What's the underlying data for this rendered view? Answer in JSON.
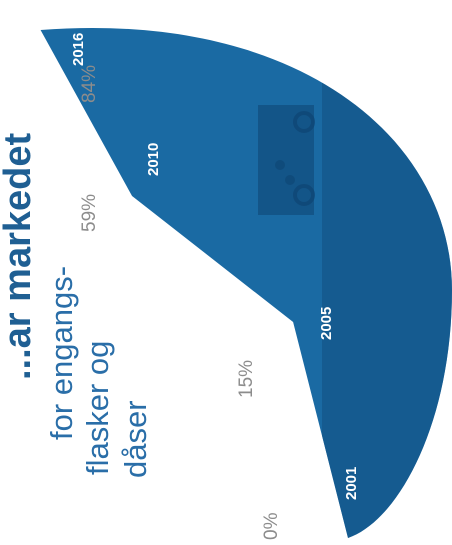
{
  "chart_data": {
    "type": "area",
    "title": "...ar markedet",
    "subtitle_lines": [
      "for engangs-",
      "flasker og",
      "dåser"
    ],
    "categories": [
      "2001",
      "2005",
      "2010",
      "2016"
    ],
    "values": [
      0,
      15,
      59,
      84
    ],
    "value_labels": [
      "0%",
      "15%",
      "59%",
      "84%"
    ],
    "unit": "%",
    "ylim": [
      0,
      100
    ],
    "colors": {
      "fill": "#1a6aa3",
      "fill_dark": "#124f82",
      "year_text": "#ffffff",
      "value_text": "#8c8c8c",
      "title_text": "#1f5f93"
    }
  }
}
